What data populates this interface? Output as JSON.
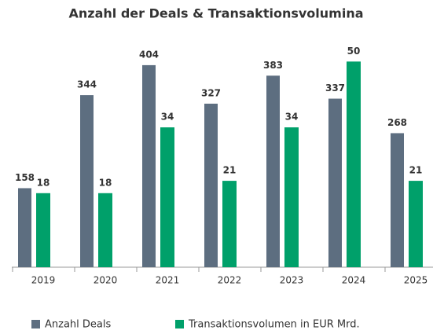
{
  "chart_data": {
    "type": "bar",
    "title": "Anzahl der Deals & Transaktionsvolumina",
    "categories": [
      "2019",
      "2020",
      "2021",
      "2022",
      "2023",
      "2024",
      "2025"
    ],
    "series": [
      {
        "name": "Anzahl Deals",
        "color": "#5d6e80",
        "values": [
          158,
          344,
          404,
          327,
          383,
          337,
          268
        ]
      },
      {
        "name": "Transaktionsvolumen in EUR Mrd.",
        "color": "#00a06a",
        "axis": "y2",
        "values": [
          18,
          18,
          34,
          21,
          34,
          50,
          21
        ]
      }
    ],
    "ylim": [
      0,
      440
    ],
    "y2lim": [
      0,
      53.5
    ],
    "legend": "bottom"
  }
}
